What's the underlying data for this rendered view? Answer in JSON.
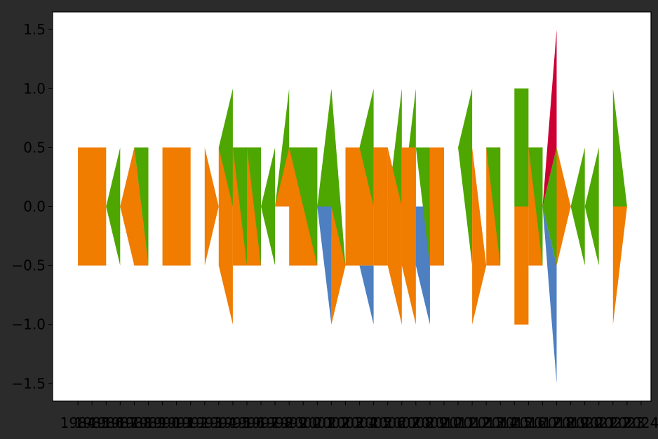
{
  "chart_data": {
    "type": "area",
    "title": "",
    "xlabel": "",
    "ylabel": "",
    "xlim": [
      1982.2,
      2024.7
    ],
    "ylim": [
      -1.65,
      1.65
    ],
    "grid": false,
    "yticks": [
      -1.5,
      -1.0,
      -0.5,
      0.0,
      0.5,
      1.0,
      1.5
    ],
    "ytick_labels": [
      "−1.5",
      "−1.0",
      "−0.5",
      "0.0",
      "0.5",
      "1.0",
      "1.5"
    ],
    "xticks": [
      1984,
      1985,
      1986,
      1987,
      1988,
      1989,
      1990,
      1991,
      1992,
      1993,
      1994,
      1995,
      1996,
      1997,
      1998,
      1999,
      2000,
      2001,
      2002,
      2003,
      2004,
      2005,
      2006,
      2007,
      2008,
      2009,
      2010,
      2011,
      2012,
      2013,
      2014,
      2015,
      2016,
      2017,
      2018,
      2019,
      2020,
      2021,
      2022,
      2023,
      2024
    ],
    "xtick_labels": [
      "1984",
      "1985",
      "1986",
      "1987",
      "1988",
      "1989",
      "1990",
      "1991",
      "1992",
      "1993",
      "1994",
      "1995",
      "1996",
      "1997",
      "1998",
      "1999",
      "2000",
      "2001",
      "2002",
      "2003",
      "2004",
      "2005",
      "2006",
      "2007",
      "2008",
      "2009",
      "2010",
      "2011",
      "2012",
      "2013",
      "2014",
      "2015",
      "2016",
      "2017",
      "2018",
      "2019",
      "2020",
      "2021",
      "2022",
      "2023",
      "2024"
    ],
    "colors": {
      "orange": "#f07c00",
      "green": "#4ea600",
      "blue": "#4d7fc1",
      "red": "#cc0033"
    },
    "series": [
      {
        "color": "orange",
        "x": [
          1984,
          1985,
          1986,
          1987,
          1988,
          1989,
          1990,
          1991,
          1992,
          1993,
          1994,
          1995,
          1996,
          1997,
          1998,
          1999,
          2000,
          2001,
          2002,
          2003,
          2004,
          2005,
          2006,
          2007,
          2008,
          2009,
          2010,
          2011,
          2012,
          2013,
          2014,
          2015,
          2016,
          2017,
          2018,
          2019,
          2020,
          2021,
          2022,
          2023,
          2024
        ],
        "upper": [
          0.5,
          0.5,
          0.5,
          0,
          0,
          0.5,
          0,
          0.5,
          0.5,
          0,
          0,
          0.5,
          0,
          0.5,
          0,
          0,
          0,
          0,
          0,
          0,
          0,
          0,
          0,
          0,
          0,
          0,
          0,
          0,
          0,
          0,
          0,
          0,
          0,
          0,
          0,
          0,
          0,
          0,
          0,
          0,
          0
        ],
        "lower": [
          -0.5,
          -0.5,
          -0.5,
          0,
          0,
          -0.5,
          0,
          -0.5,
          -0.5,
          0,
          0,
          -0.5,
          -1,
          -0.5,
          -0.5,
          0,
          0,
          0,
          0,
          0,
          0,
          0,
          0,
          0,
          0,
          0,
          0,
          0,
          0,
          0,
          0,
          0,
          0,
          0,
          0,
          0,
          0,
          0,
          0,
          0,
          0
        ]
      },
      {
        "color": "green",
        "x": [
          1984,
          1985,
          1986,
          1987,
          1988,
          1989,
          1990,
          1991,
          1992,
          1993,
          1994,
          1995,
          1996,
          1997,
          1998,
          1999,
          2000,
          2001,
          2002,
          2003,
          2004,
          2005,
          2006,
          2007,
          2008,
          2009,
          2010,
          2011,
          2012,
          2013,
          2014,
          2015,
          2016,
          2017,
          2018,
          2019,
          2020,
          2021,
          2022,
          2023,
          2024
        ],
        "upper": [
          0,
          0,
          0,
          0.5,
          0,
          0,
          0.5,
          0,
          0,
          0,
          0,
          0,
          0,
          0,
          0,
          0,
          0,
          0,
          0,
          0,
          0,
          0,
          0,
          0,
          0,
          0,
          0,
          0,
          0,
          0,
          0,
          0,
          0,
          0,
          0,
          0,
          0,
          0,
          0,
          0,
          0
        ],
        "lower": [
          0,
          0,
          0,
          -0.5,
          0,
          0,
          -0.5,
          0,
          0,
          0,
          0,
          0,
          0,
          0,
          0,
          0,
          0,
          0,
          0,
          0,
          0,
          0,
          0,
          0,
          0,
          0,
          0,
          0,
          0,
          0,
          0,
          0,
          0,
          0,
          0,
          0,
          0,
          0,
          0,
          0,
          0
        ]
      }
    ],
    "regions": [
      {
        "color": "orange",
        "points": [
          [
            1984,
            0.5
          ],
          [
            1986,
            0.5
          ],
          [
            1986,
            -0.5
          ],
          [
            1984,
            -0.5
          ]
        ]
      },
      {
        "color": "green",
        "points": [
          [
            1986,
            0
          ],
          [
            1987,
            0.5
          ],
          [
            1987,
            -0.5
          ]
        ]
      },
      {
        "color": "orange",
        "points": [
          [
            1987,
            0
          ],
          [
            1988,
            0.5
          ],
          [
            1989,
            -0.5
          ],
          [
            1988,
            -0.5
          ]
        ]
      },
      {
        "color": "green",
        "points": [
          [
            1988,
            0.5
          ],
          [
            1989,
            0.5
          ],
          [
            1989,
            -0.5
          ]
        ]
      },
      {
        "color": "orange",
        "points": [
          [
            1990,
            0.5
          ],
          [
            1992,
            0.5
          ],
          [
            1992,
            -0.5
          ],
          [
            1990,
            -0.5
          ]
        ]
      },
      {
        "color": "orange",
        "points": [
          [
            1993,
            0.5
          ],
          [
            1994,
            0
          ],
          [
            1993,
            -0.5
          ]
        ]
      },
      {
        "color": "orange",
        "points": [
          [
            1994,
            0.5
          ],
          [
            1995,
            0.5
          ],
          [
            1995,
            -1.0
          ],
          [
            1994,
            -0.5
          ]
        ]
      },
      {
        "color": "green",
        "points": [
          [
            1994,
            0.5
          ],
          [
            1995,
            1.0
          ],
          [
            1995,
            0
          ]
        ]
      },
      {
        "color": "orange",
        "points": [
          [
            1995,
            0.5
          ],
          [
            1996,
            0.5
          ],
          [
            1996,
            -0.5
          ],
          [
            1995,
            -0.5
          ]
        ]
      },
      {
        "color": "green",
        "points": [
          [
            1995,
            0.5
          ],
          [
            1996,
            0.5
          ],
          [
            1996,
            -0.5
          ]
        ]
      },
      {
        "color": "orange",
        "points": [
          [
            1996,
            0.5
          ],
          [
            1997,
            0.5
          ],
          [
            1997,
            -0.5
          ],
          [
            1996,
            -0.5
          ]
        ]
      },
      {
        "color": "green",
        "points": [
          [
            1996,
            0.5
          ],
          [
            1997,
            0.5
          ],
          [
            1997,
            -0.5
          ]
        ]
      },
      {
        "color": "green",
        "points": [
          [
            1997,
            0
          ],
          [
            1998,
            0.5
          ],
          [
            1998,
            -0.5
          ]
        ]
      },
      {
        "color": "green",
        "points": [
          [
            1998,
            0
          ],
          [
            1999,
            1.0
          ],
          [
            1999,
            0
          ]
        ]
      },
      {
        "color": "orange",
        "points": [
          [
            1998,
            0
          ],
          [
            1999,
            0
          ],
          [
            1999,
            -1.0
          ],
          [
            1999,
            -0.5
          ],
          [
            2001,
            -0.5
          ],
          [
            2001,
            0.5
          ],
          [
            1999,
            0.5
          ]
        ]
      },
      {
        "color": "green",
        "points": [
          [
            1999,
            0.5
          ],
          [
            2001,
            0.5
          ],
          [
            2001,
            -0.5
          ]
        ]
      },
      {
        "color": "green",
        "points": [
          [
            2001,
            0
          ],
          [
            2002,
            1.0
          ],
          [
            2003,
            -0.5
          ]
        ]
      },
      {
        "color": "blue",
        "points": [
          [
            2001,
            0
          ],
          [
            2002,
            0
          ],
          [
            2002,
            -1.0
          ]
        ]
      },
      {
        "color": "orange",
        "points": [
          [
            2002,
            0
          ],
          [
            2003,
            -0.5
          ],
          [
            2002,
            -1.0
          ]
        ]
      },
      {
        "color": "orange",
        "points": [
          [
            2003,
            0.5
          ],
          [
            2005,
            0.5
          ],
          [
            2005,
            -0.5
          ],
          [
            2003,
            -0.5
          ]
        ]
      },
      {
        "color": "green",
        "points": [
          [
            2004,
            0.5
          ],
          [
            2005,
            1.0
          ],
          [
            2005,
            0
          ]
        ]
      },
      {
        "color": "blue",
        "points": [
          [
            2004,
            -0.5
          ],
          [
            2005,
            -0.5
          ],
          [
            2005,
            -1.0
          ]
        ]
      },
      {
        "color": "green",
        "points": [
          [
            2005,
            0.5
          ],
          [
            2006,
            0.5
          ],
          [
            2006,
            -0.5
          ]
        ]
      },
      {
        "color": "orange",
        "points": [
          [
            2005,
            0.5
          ],
          [
            2006,
            0.5
          ],
          [
            2006,
            -0.5
          ],
          [
            2005,
            -0.5
          ]
        ]
      },
      {
        "color": "green",
        "points": [
          [
            2006,
            0
          ],
          [
            2007,
            1.0
          ],
          [
            2007,
            -0.5
          ]
        ]
      },
      {
        "color": "orange",
        "points": [
          [
            2006,
            0.5
          ],
          [
            2007,
            0
          ],
          [
            2007,
            -1.0
          ],
          [
            2006,
            -0.5
          ]
        ]
      },
      {
        "color": "green",
        "points": [
          [
            2007,
            0
          ],
          [
            2008,
            1.0
          ],
          [
            2008,
            -0.5
          ]
        ]
      },
      {
        "color": "orange",
        "points": [
          [
            2007,
            0.5
          ],
          [
            2008,
            0.5
          ],
          [
            2008,
            -1.0
          ],
          [
            2007,
            -0.5
          ]
        ]
      },
      {
        "color": "blue",
        "points": [
          [
            2008,
            0
          ],
          [
            2009,
            0
          ],
          [
            2009,
            -1.0
          ],
          [
            2008,
            -0.5
          ]
        ]
      },
      {
        "color": "green",
        "points": [
          [
            2008,
            0.5
          ],
          [
            2009,
            0.5
          ],
          [
            2009,
            -0.5
          ]
        ]
      },
      {
        "color": "orange",
        "points": [
          [
            2009,
            0.5
          ],
          [
            2010,
            0.5
          ],
          [
            2010,
            -0.5
          ],
          [
            2009,
            -0.5
          ]
        ]
      },
      {
        "color": "green",
        "points": [
          [
            2011,
            0.5
          ],
          [
            2012,
            1.0
          ],
          [
            2012,
            -0.5
          ]
        ]
      },
      {
        "color": "orange",
        "points": [
          [
            2012,
            0.5
          ],
          [
            2013,
            -0.5
          ],
          [
            2012,
            -1.0
          ]
        ]
      },
      {
        "color": "orange",
        "points": [
          [
            2013,
            0.5
          ],
          [
            2014,
            0.5
          ],
          [
            2014,
            -0.5
          ],
          [
            2013,
            -0.5
          ]
        ]
      },
      {
        "color": "green",
        "points": [
          [
            2013,
            0.5
          ],
          [
            2014,
            0.5
          ],
          [
            2014,
            -0.5
          ]
        ]
      },
      {
        "color": "green",
        "points": [
          [
            2015,
            1.0
          ],
          [
            2016,
            1.0
          ],
          [
            2016,
            0
          ],
          [
            2015,
            0
          ]
        ]
      },
      {
        "color": "orange",
        "points": [
          [
            2015,
            0
          ],
          [
            2016,
            0
          ],
          [
            2016,
            -1.0
          ],
          [
            2015,
            -1.0
          ]
        ]
      },
      {
        "color": "orange",
        "points": [
          [
            2016,
            0.5
          ],
          [
            2017,
            0.5
          ],
          [
            2017,
            -0.5
          ],
          [
            2016,
            -0.5
          ]
        ]
      },
      {
        "color": "green",
        "points": [
          [
            2016,
            0.5
          ],
          [
            2017,
            0.5
          ],
          [
            2017,
            -0.5
          ]
        ]
      },
      {
        "color": "red",
        "points": [
          [
            2017,
            0
          ],
          [
            2018,
            1.5
          ],
          [
            2018,
            0.5
          ]
        ]
      },
      {
        "color": "green",
        "points": [
          [
            2017,
            0
          ],
          [
            2018,
            0.5
          ],
          [
            2018,
            -0.5
          ]
        ]
      },
      {
        "color": "blue",
        "points": [
          [
            2017,
            0
          ],
          [
            2018,
            -0.5
          ],
          [
            2018,
            -1.5
          ]
        ]
      },
      {
        "color": "orange",
        "points": [
          [
            2018,
            0.5
          ],
          [
            2019,
            0
          ],
          [
            2018,
            -0.5
          ]
        ]
      },
      {
        "color": "green",
        "points": [
          [
            2019,
            0
          ],
          [
            2020,
            0.5
          ],
          [
            2020,
            -0.5
          ]
        ]
      },
      {
        "color": "green",
        "points": [
          [
            2020,
            0
          ],
          [
            2021,
            0.5
          ],
          [
            2021,
            -0.5
          ]
        ]
      },
      {
        "color": "green",
        "points": [
          [
            2022,
            1.0
          ],
          [
            2023,
            0
          ],
          [
            2022,
            0
          ]
        ]
      },
      {
        "color": "orange",
        "points": [
          [
            2022,
            0
          ],
          [
            2023,
            0
          ],
          [
            2022,
            -1.0
          ]
        ]
      }
    ]
  }
}
